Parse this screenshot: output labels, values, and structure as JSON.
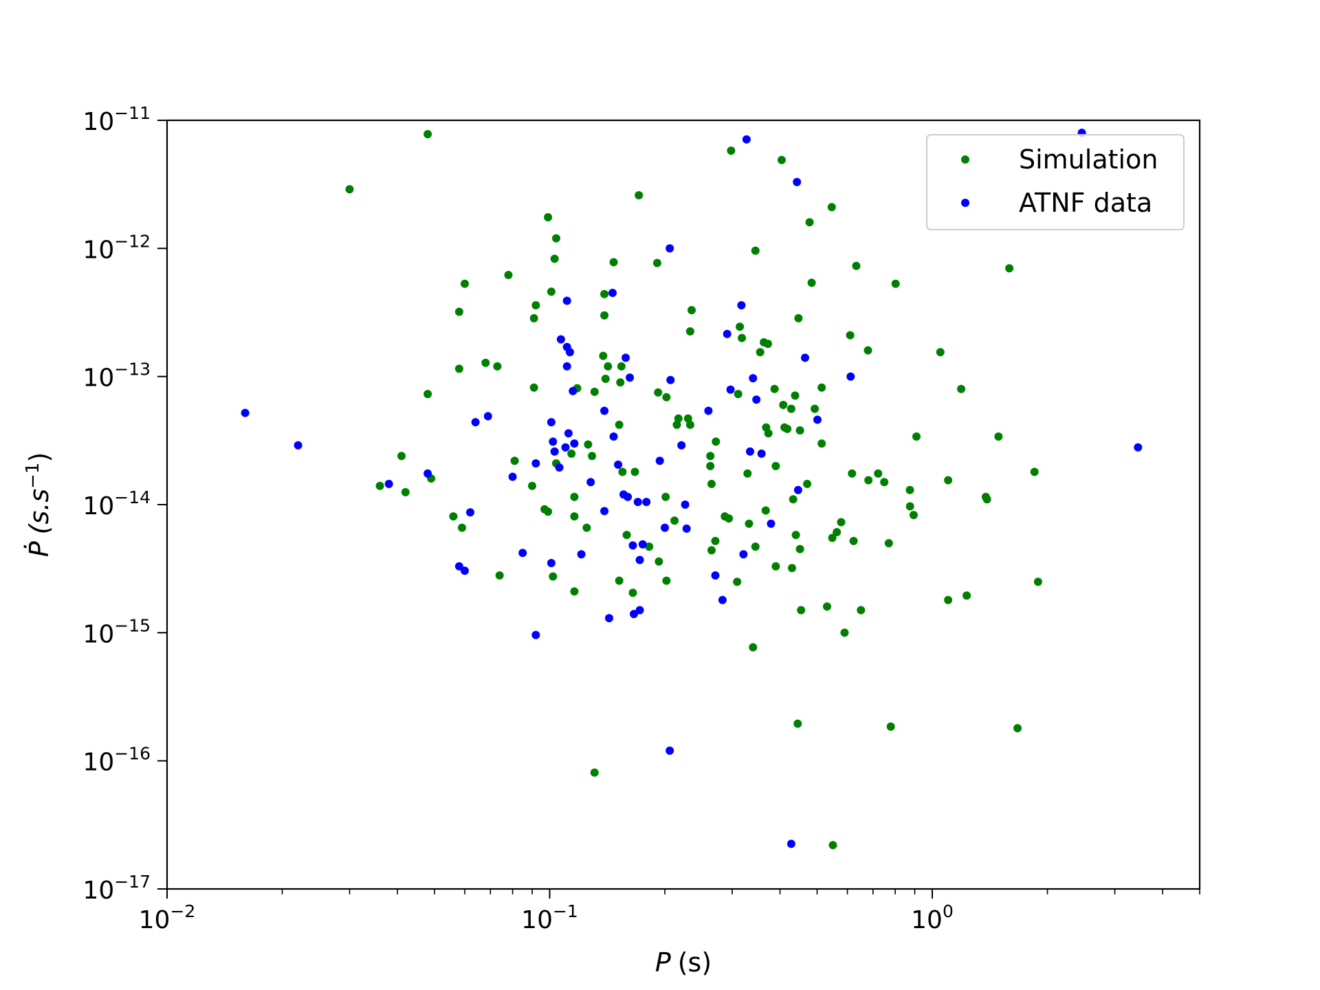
{
  "chart_data": {
    "type": "scatter",
    "title": "",
    "xlabel": "P (s)",
    "xlabel_var": "P",
    "xlabel_unit": "(s)",
    "ylabel": "Ṗ (s.s⁻¹)",
    "ylabel_var": "Ṗ",
    "ylabel_unit_base": "(s.s",
    "ylabel_unit_exp": "−1",
    "ylabel_unit_close": ")",
    "xscale": "log",
    "yscale": "log",
    "xlim": [
      0.01,
      5.0
    ],
    "ylim": [
      1e-17,
      1e-11
    ],
    "grid": false,
    "legend_position": "top-right",
    "x_ticks": [
      {
        "value": 0.01,
        "base": "10",
        "exp": "−2"
      },
      {
        "value": 0.1,
        "base": "10",
        "exp": "−1"
      },
      {
        "value": 1,
        "base": "10",
        "exp": "0"
      }
    ],
    "y_ticks": [
      {
        "value": 1e-11,
        "base": "10",
        "exp": "−11"
      },
      {
        "value": 1e-12,
        "base": "10",
        "exp": "−12"
      },
      {
        "value": 1e-13,
        "base": "10",
        "exp": "−13"
      },
      {
        "value": 1e-14,
        "base": "10",
        "exp": "−14"
      },
      {
        "value": 1e-15,
        "base": "10",
        "exp": "−15"
      },
      {
        "value": 1e-16,
        "base": "10",
        "exp": "−16"
      },
      {
        "value": 1e-17,
        "base": "10",
        "exp": "−17"
      }
    ],
    "series": [
      {
        "name": "Simulation",
        "color": "#008000",
        "points": [
          [
            0.03,
            2.9e-12
          ],
          [
            0.048,
            7.8e-12
          ],
          [
            0.036,
            1.4e-14
          ],
          [
            0.041,
            2.4e-14
          ],
          [
            0.042,
            1.25e-14
          ],
          [
            0.048,
            7.3e-14
          ],
          [
            0.049,
            1.6e-14
          ],
          [
            0.056,
            8.1e-15
          ],
          [
            0.058,
            1.15e-13
          ],
          [
            0.058,
            3.2e-13
          ],
          [
            0.059,
            6.6e-15
          ],
          [
            0.06,
            5.3e-13
          ],
          [
            0.068,
            1.28e-13
          ],
          [
            0.073,
            1.2e-13
          ],
          [
            0.074,
            2.8e-15
          ],
          [
            0.078,
            6.2e-13
          ],
          [
            0.081,
            2.2e-14
          ],
          [
            0.09,
            1.4e-14
          ],
          [
            0.091,
            2.85e-13
          ],
          [
            0.091,
            8.2e-14
          ],
          [
            0.092,
            3.6e-13
          ],
          [
            0.097,
            9.2e-15
          ],
          [
            0.099,
            8.8e-15
          ],
          [
            0.099,
            1.75e-12
          ],
          [
            0.101,
            4.6e-13
          ],
          [
            0.102,
            2.75e-15
          ],
          [
            0.103,
            8.3e-13
          ],
          [
            0.104,
            1.2e-12
          ],
          [
            0.104,
            2.1e-14
          ],
          [
            0.114,
            2.5e-14
          ],
          [
            0.116,
            1.15e-14
          ],
          [
            0.116,
            8.1e-15
          ],
          [
            0.116,
            2.1e-15
          ],
          [
            0.118,
            8.1e-14
          ],
          [
            0.125,
            6.6e-15
          ],
          [
            0.126,
            2.95e-14
          ],
          [
            0.129,
            2.4e-14
          ],
          [
            0.131,
            7.6e-14
          ],
          [
            0.131,
            8.1e-17
          ],
          [
            0.138,
            1.45e-13
          ],
          [
            0.139,
            3e-13
          ],
          [
            0.139,
            4.4e-13
          ],
          [
            0.14,
            9.6e-14
          ],
          [
            0.142,
            1.2e-13
          ],
          [
            0.147,
            7.8e-13
          ],
          [
            0.152,
            4.2e-14
          ],
          [
            0.152,
            2.55e-15
          ],
          [
            0.153,
            9e-14
          ],
          [
            0.154,
            1.2e-13
          ],
          [
            0.155,
            1.8e-14
          ],
          [
            0.159,
            5.8e-15
          ],
          [
            0.165,
            2.05e-15
          ],
          [
            0.167,
            1.8e-14
          ],
          [
            0.171,
            2.6e-12
          ],
          [
            0.182,
            4.7e-15
          ],
          [
            0.191,
            7.7e-13
          ],
          [
            0.192,
            7.5e-14
          ],
          [
            0.193,
            3.6e-15
          ],
          [
            0.201,
            1.15e-14
          ],
          [
            0.202,
            6.9e-14
          ],
          [
            0.202,
            2.55e-15
          ],
          [
            0.212,
            7.5e-15
          ],
          [
            0.215,
            4.2e-14
          ],
          [
            0.217,
            4.7e-14
          ],
          [
            0.23,
            4.7e-14
          ],
          [
            0.233,
            2.25e-13
          ],
          [
            0.233,
            4.2e-14
          ],
          [
            0.235,
            3.3e-13
          ],
          [
            0.263,
            2.4e-14
          ],
          [
            0.263,
            2e-14
          ],
          [
            0.265,
            1.45e-14
          ],
          [
            0.265,
            4.4e-15
          ],
          [
            0.271,
            5.2e-15
          ],
          [
            0.272,
            3.1e-14
          ],
          [
            0.287,
            8.1e-15
          ],
          [
            0.294,
            7.8e-15
          ],
          [
            0.298,
            5.8e-12
          ],
          [
            0.309,
            2.5e-15
          ],
          [
            0.311,
            7.3e-14
          ],
          [
            0.314,
            2.45e-13
          ],
          [
            0.318,
            2e-13
          ],
          [
            0.329,
            1.75e-14
          ],
          [
            0.332,
            7.1e-15
          ],
          [
            0.34,
            7.7e-16
          ],
          [
            0.345,
            9.6e-13
          ],
          [
            0.345,
            4.7e-15
          ],
          [
            0.355,
            1.55e-13
          ],
          [
            0.363,
            1.85e-13
          ],
          [
            0.367,
            9e-15
          ],
          [
            0.368,
            4e-14
          ],
          [
            0.372,
            1.8e-13
          ],
          [
            0.373,
            3.6e-14
          ],
          [
            0.387,
            8e-14
          ],
          [
            0.39,
            2e-14
          ],
          [
            0.39,
            3.3e-15
          ],
          [
            0.404,
            4.9e-12
          ],
          [
            0.408,
            6e-14
          ],
          [
            0.411,
            4e-14
          ],
          [
            0.418,
            3.9e-14
          ],
          [
            0.428,
            5.6e-14
          ],
          [
            0.43,
            3.2e-15
          ],
          [
            0.433,
            1.1e-14
          ],
          [
            0.438,
            7.1e-14
          ],
          [
            0.44,
            5.8e-15
          ],
          [
            0.445,
            1.95e-16
          ],
          [
            0.447,
            2.85e-13
          ],
          [
            0.451,
            4.5e-15
          ],
          [
            0.451,
            3.8e-14
          ],
          [
            0.454,
            1.5e-15
          ],
          [
            0.471,
            1.45e-14
          ],
          [
            0.478,
            1.6e-12
          ],
          [
            0.484,
            5.4e-13
          ],
          [
            0.493,
            5.6e-14
          ],
          [
            0.514,
            8.2e-14
          ],
          [
            0.514,
            3e-14
          ],
          [
            0.531,
            1.6e-15
          ],
          [
            0.546,
            2.1e-12
          ],
          [
            0.548,
            5.5e-15
          ],
          [
            0.55,
            2.2e-17
          ],
          [
            0.563,
            6.1e-15
          ],
          [
            0.578,
            7.3e-15
          ],
          [
            0.59,
            1e-15
          ],
          [
            0.61,
            2.1e-13
          ],
          [
            0.617,
            1.75e-14
          ],
          [
            0.623,
            5.2e-15
          ],
          [
            0.633,
            7.3e-13
          ],
          [
            0.651,
            1.5e-15
          ],
          [
            0.679,
            1.6e-13
          ],
          [
            0.681,
            1.55e-14
          ],
          [
            0.722,
            1.75e-14
          ],
          [
            0.749,
            1.5e-14
          ],
          [
            0.77,
            5e-15
          ],
          [
            0.779,
            1.85e-16
          ],
          [
            0.802,
            5.3e-13
          ],
          [
            0.874,
            1.3e-14
          ],
          [
            0.875,
            9.7e-15
          ],
          [
            0.894,
            8.3e-15
          ],
          [
            0.909,
            3.4e-14
          ],
          [
            1.05,
            1.55e-13
          ],
          [
            1.1,
            1.55e-14
          ],
          [
            1.1,
            1.8e-15
          ],
          [
            1.19,
            8e-14
          ],
          [
            1.23,
            1.95e-15
          ],
          [
            1.38,
            1.15e-14
          ],
          [
            1.39,
            1.1e-14
          ],
          [
            1.49,
            3.4e-14
          ],
          [
            1.59,
            7e-13
          ],
          [
            1.67,
            1.8e-16
          ],
          [
            1.85,
            1.8e-14
          ],
          [
            1.89,
            2.5e-15
          ]
        ]
      },
      {
        "name": "ATNF data",
        "color": "#0000ff",
        "points": [
          [
            0.016,
            5.2e-14
          ],
          [
            0.022,
            2.9e-14
          ],
          [
            0.038,
            1.45e-14
          ],
          [
            0.048,
            1.75e-14
          ],
          [
            0.058,
            3.3e-15
          ],
          [
            0.06,
            3.05e-15
          ],
          [
            0.062,
            8.7e-15
          ],
          [
            0.064,
            4.4e-14
          ],
          [
            0.069,
            4.9e-14
          ],
          [
            0.08,
            1.65e-14
          ],
          [
            0.085,
            4.2e-15
          ],
          [
            0.092,
            2.1e-14
          ],
          [
            0.092,
            9.6e-16
          ],
          [
            0.101,
            4.4e-14
          ],
          [
            0.101,
            3.5e-15
          ],
          [
            0.102,
            3.1e-14
          ],
          [
            0.103,
            2.6e-14
          ],
          [
            0.106,
            1.95e-14
          ],
          [
            0.107,
            1.95e-13
          ],
          [
            0.11,
            2.8e-14
          ],
          [
            0.111,
            3.9e-13
          ],
          [
            0.111,
            1.7e-13
          ],
          [
            0.111,
            1.2e-13
          ],
          [
            0.112,
            3.6e-14
          ],
          [
            0.113,
            1.55e-13
          ],
          [
            0.115,
            7.7e-14
          ],
          [
            0.116,
            3e-14
          ],
          [
            0.121,
            4.1e-15
          ],
          [
            0.128,
            1.5e-14
          ],
          [
            0.139,
            5.4e-14
          ],
          [
            0.139,
            8.9e-15
          ],
          [
            0.143,
            1.3e-15
          ],
          [
            0.146,
            4.5e-13
          ],
          [
            0.147,
            3.4e-14
          ],
          [
            0.151,
            2.05e-14
          ],
          [
            0.156,
            1.2e-14
          ],
          [
            0.158,
            1.4e-13
          ],
          [
            0.16,
            1.15e-14
          ],
          [
            0.162,
            9.8e-14
          ],
          [
            0.165,
            4.8e-15
          ],
          [
            0.166,
            1.4e-15
          ],
          [
            0.17,
            1.05e-14
          ],
          [
            0.172,
            3.7e-15
          ],
          [
            0.172,
            1.5e-15
          ],
          [
            0.175,
            4.9e-15
          ],
          [
            0.179,
            1.05e-14
          ],
          [
            0.194,
            2.2e-14
          ],
          [
            0.2,
            6.6e-15
          ],
          [
            0.206,
            1e-12
          ],
          [
            0.207,
            9.4e-14
          ],
          [
            0.206,
            1.2e-16
          ],
          [
            0.221,
            2.9e-14
          ],
          [
            0.226,
            1e-14
          ],
          [
            0.228,
            6.5e-15
          ],
          [
            0.26,
            5.4e-14
          ],
          [
            0.271,
            2.8e-15
          ],
          [
            0.283,
            1.8e-15
          ],
          [
            0.291,
            2.15e-13
          ],
          [
            0.297,
            7.9e-14
          ],
          [
            0.317,
            3.6e-13
          ],
          [
            0.321,
            4.1e-15
          ],
          [
            0.327,
            7.1e-12
          ],
          [
            0.334,
            2.6e-14
          ],
          [
            0.34,
            9.7e-14
          ],
          [
            0.347,
            6.6e-14
          ],
          [
            0.358,
            2.5e-14
          ],
          [
            0.379,
            7.1e-15
          ],
          [
            0.428,
            2.25e-17
          ],
          [
            0.443,
            3.3e-12
          ],
          [
            0.446,
            1.3e-14
          ],
          [
            0.465,
            1.4e-13
          ],
          [
            0.501,
            4.6e-14
          ],
          [
            0.612,
            1e-13
          ],
          [
            2.46,
            8e-12
          ],
          [
            3.45,
            2.8e-14
          ]
        ]
      }
    ]
  }
}
